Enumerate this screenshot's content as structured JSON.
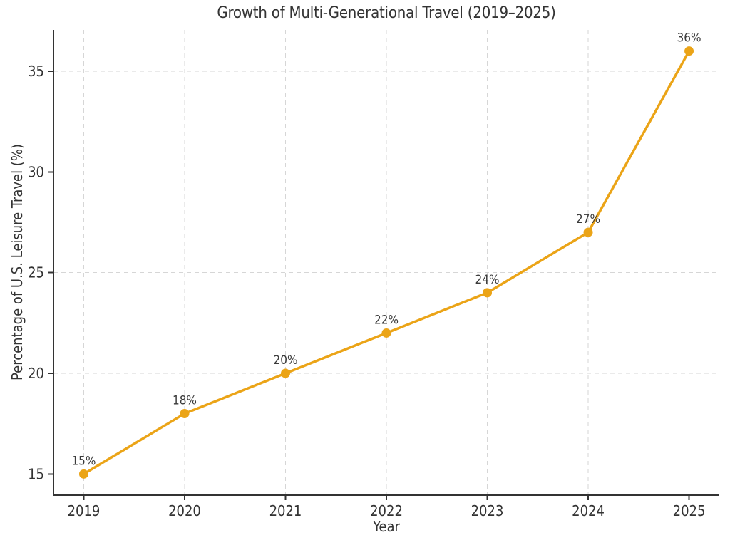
{
  "figure": {
    "title": "Growth of Multi-Generational Travel (2019–2025)",
    "xlabel": "Year",
    "ylabel": "Percentage of U.S. Leisure Travel (%)"
  },
  "chart_data": {
    "type": "line",
    "title": "Growth of Multi-Generational Travel (2019–2025)",
    "xlabel": "Year",
    "ylabel": "Percentage of U.S. Leisure Travel (%)",
    "categories": [
      2019,
      2020,
      2021,
      2022,
      2023,
      2024,
      2025
    ],
    "values": [
      15,
      18,
      20,
      22,
      24,
      27,
      36
    ],
    "point_labels": [
      "15%",
      "18%",
      "20%",
      "22%",
      "24%",
      "27%",
      "36%"
    ],
    "unit": "%",
    "yticks": [
      15,
      20,
      25,
      30,
      35
    ],
    "xticks": [
      2019,
      2020,
      2021,
      2022,
      2023,
      2024,
      2025
    ],
    "xlim": [
      2018.7,
      2025.3
    ],
    "ylim": [
      13.95,
      37.05
    ],
    "grid": true,
    "grid_style": "dashed",
    "legend_position": "none",
    "line_color": "#EBA417",
    "marker": "circle",
    "marker_color": "#EBA417",
    "text_color": "#333333",
    "annotation_color": "#3a3a3a",
    "grid_color": "#d6d6d6",
    "spine_color": "#333333"
  }
}
